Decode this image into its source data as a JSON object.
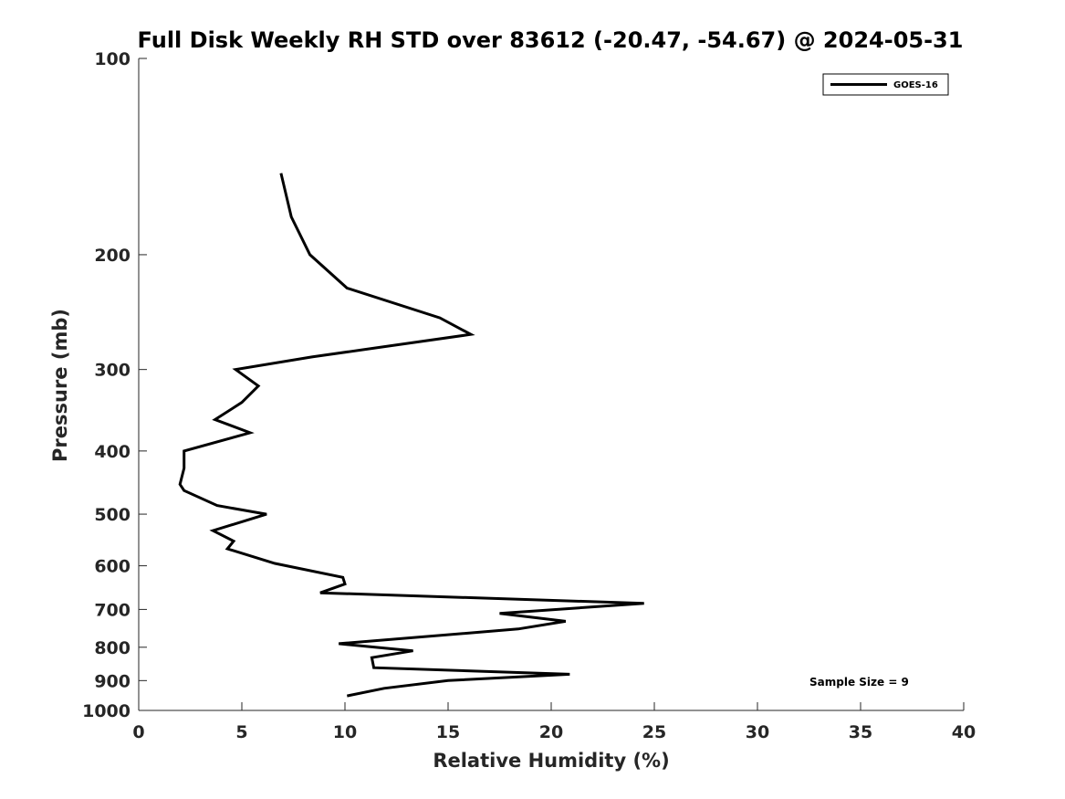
{
  "chart_data": {
    "type": "line",
    "title": "Full Disk Weekly RH STD over 83612 (-20.47, -54.67) @ 2024-05-31",
    "xlabel": "Relative Humidity (%)",
    "ylabel": "Pressure (mb)",
    "xlim": [
      0,
      40
    ],
    "ylim": [
      100,
      1000
    ],
    "y_scale": "log",
    "y_reversed": true,
    "x_ticks": [
      0,
      5,
      10,
      15,
      20,
      25,
      30,
      35,
      40
    ],
    "y_ticks": [
      100,
      200,
      300,
      400,
      500,
      600,
      700,
      800,
      900,
      1000
    ],
    "grid": false,
    "legend_position": "top-right",
    "annotation": "Sample Size = 9",
    "series": [
      {
        "name": "GOES-16",
        "color": "#000000",
        "points": [
          {
            "x": 6.9,
            "p": 150
          },
          {
            "x": 7.4,
            "p": 175
          },
          {
            "x": 8.3,
            "p": 200
          },
          {
            "x": 10.1,
            "p": 225
          },
          {
            "x": 14.6,
            "p": 250
          },
          {
            "x": 16.1,
            "p": 265
          },
          {
            "x": 8.4,
            "p": 287
          },
          {
            "x": 4.7,
            "p": 300
          },
          {
            "x": 5.8,
            "p": 318
          },
          {
            "x": 5.0,
            "p": 337
          },
          {
            "x": 3.7,
            "p": 358
          },
          {
            "x": 5.4,
            "p": 375
          },
          {
            "x": 2.2,
            "p": 400
          },
          {
            "x": 2.2,
            "p": 425
          },
          {
            "x": 2.0,
            "p": 450
          },
          {
            "x": 2.2,
            "p": 460
          },
          {
            "x": 3.8,
            "p": 485
          },
          {
            "x": 6.2,
            "p": 500
          },
          {
            "x": 3.6,
            "p": 530
          },
          {
            "x": 4.6,
            "p": 550
          },
          {
            "x": 4.3,
            "p": 565
          },
          {
            "x": 6.6,
            "p": 595
          },
          {
            "x": 9.9,
            "p": 625
          },
          {
            "x": 10.0,
            "p": 640
          },
          {
            "x": 8.8,
            "p": 660
          },
          {
            "x": 24.5,
            "p": 685
          },
          {
            "x": 17.5,
            "p": 710
          },
          {
            "x": 20.7,
            "p": 730
          },
          {
            "x": 18.4,
            "p": 750
          },
          {
            "x": 9.7,
            "p": 790
          },
          {
            "x": 13.3,
            "p": 810
          },
          {
            "x": 11.3,
            "p": 830
          },
          {
            "x": 11.4,
            "p": 860
          },
          {
            "x": 20.9,
            "p": 880
          },
          {
            "x": 15.0,
            "p": 900
          },
          {
            "x": 11.9,
            "p": 925
          },
          {
            "x": 10.1,
            "p": 950
          }
        ]
      }
    ]
  }
}
